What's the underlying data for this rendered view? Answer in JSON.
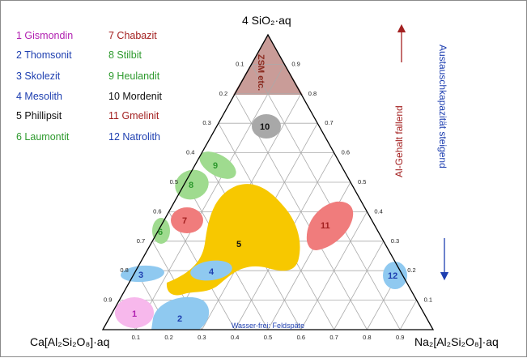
{
  "legend": [
    {
      "label": "1 Gismondin",
      "color": "#b01fb0"
    },
    {
      "label": "2 Thomsonit",
      "color": "#1e3fb0"
    },
    {
      "label": "3 Skolezit",
      "color": "#1e3fb0"
    },
    {
      "label": "4 Mesolith",
      "color": "#1e3fb0"
    },
    {
      "label": "5 Phillipsit",
      "color": "#111111"
    },
    {
      "label": "6 Laumontit",
      "color": "#2e9a2e"
    },
    {
      "label": "7 Chabazit",
      "color": "#a32020"
    },
    {
      "label": "8 Stilbit",
      "color": "#2e9a2e"
    },
    {
      "label": "9 Heulandit",
      "color": "#2e9a2e"
    },
    {
      "label": "10 Mordenit",
      "color": "#111111"
    },
    {
      "label": "11 Gmelinit",
      "color": "#a32020"
    },
    {
      "label": "12 Natrolith",
      "color": "#1e3fb0"
    }
  ],
  "corners": {
    "top": "4 SiO₂·aq",
    "left": "Ca[Al₂Si₂O₈]·aq",
    "right": "Na₂[Al₂Si₂O₈]·aq"
  },
  "zone_labels": {
    "z1": "1",
    "z2": "2",
    "z3": "3",
    "z4": "4",
    "z5": "5",
    "z6": "6",
    "z7": "7",
    "z8": "8",
    "z9": "9",
    "z10": "10",
    "z11": "11",
    "z12": "12",
    "zsm": "ZSM etc."
  },
  "zone_colors": {
    "pink": "#f7b8ec",
    "blue": "#8fc9f0",
    "gold": "#f7c800",
    "green": "#9fdb8f",
    "red": "#f07c7c",
    "gray": "#a8a8a8",
    "brown": "#c99c98"
  },
  "side_labels": {
    "al_content": "Al-Gehalt fallend",
    "exchange": "Austauschkapazität steigend",
    "anhydrous": "Wasser-frei: Feldspäte"
  },
  "ticks": [
    "0.1",
    "0.2",
    "0.3",
    "0.4",
    "0.5",
    "0.6",
    "0.7",
    "0.8",
    "0.9"
  ]
}
